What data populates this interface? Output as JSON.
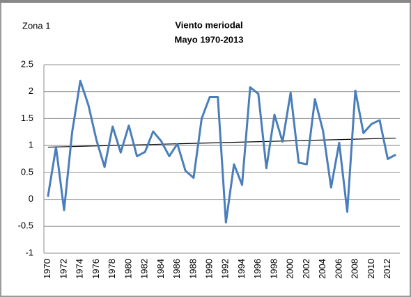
{
  "chart_data": {
    "type": "line",
    "annotation": "Zona  1",
    "title": "Viento meriodal",
    "subtitle": "Mayo 1970-2013",
    "categories": [
      "1970",
      null,
      "1972",
      null,
      "1974",
      null,
      "1976",
      null,
      "1978",
      null,
      "1980",
      null,
      "1982",
      null,
      "1984",
      null,
      "1986",
      null,
      "1988",
      null,
      "1990",
      null,
      "1992",
      null,
      "1994",
      null,
      "1996",
      null,
      "1998",
      null,
      "2000",
      null,
      "2002",
      null,
      "2004",
      null,
      "2006",
      null,
      "2008",
      null,
      "2010",
      null,
      "2012",
      null
    ],
    "values": [
      0.05,
      0.97,
      -0.2,
      1.25,
      2.2,
      1.75,
      1.1,
      0.6,
      1.35,
      0.87,
      1.37,
      0.8,
      0.88,
      1.26,
      1.08,
      0.8,
      1.03,
      0.53,
      0.4,
      1.5,
      1.9,
      1.9,
      -0.43,
      0.65,
      0.27,
      2.08,
      1.96,
      0.58,
      1.57,
      1.07,
      1.98,
      0.68,
      0.65,
      1.86,
      1.27,
      0.22,
      1.05,
      -0.23,
      2.02,
      1.23,
      1.4,
      1.47,
      0.75,
      0.83
    ],
    "color": "#4a7ebb",
    "trendline": true,
    "trendline_color": "#000000",
    "ylim": [
      -1,
      2.5
    ],
    "yticks": [
      -1,
      -0.5,
      0,
      0.5,
      1,
      1.5,
      2,
      2.5
    ],
    "grid": true
  }
}
